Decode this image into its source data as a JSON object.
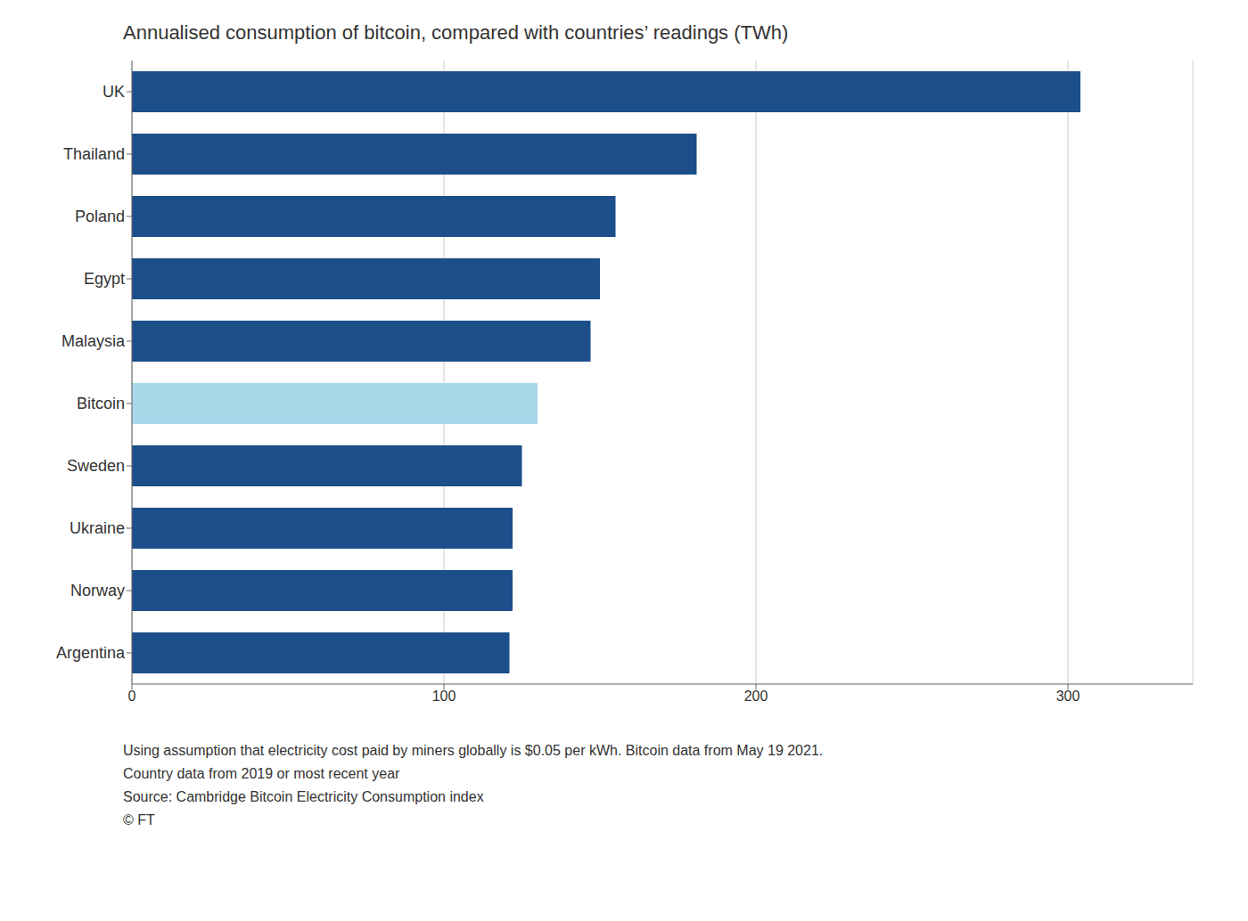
{
  "chart_data": {
    "type": "bar",
    "orientation": "horizontal",
    "title": "Annualised consumption of bitcoin, compared with countries’ readings (TWh)",
    "categories": [
      "UK",
      "Thailand",
      "Poland",
      "Egypt",
      "Malaysia",
      "Bitcoin",
      "Sweden",
      "Ukraine",
      "Norway",
      "Argentina"
    ],
    "values": [
      304,
      181,
      155,
      150,
      147,
      130,
      125,
      122,
      122,
      121
    ],
    "colors": [
      "#1c4f8a",
      "#1c4f8a",
      "#1c4f8a",
      "#1c4f8a",
      "#1c4f8a",
      "#a8d8ea",
      "#1c4f8a",
      "#1c4f8a",
      "#1c4f8a",
      "#1c4f8a"
    ],
    "xlim": [
      0,
      340
    ],
    "xticks": [
      0,
      100,
      200,
      300
    ],
    "grid": true,
    "annotations": [
      "Using assumption that electricity cost paid by miners globally is $0.05 per kWh. Bitcoin data from May 19 2021.",
      "Country data from 2019 or most recent year",
      "Source: Cambridge Bitcoin Electricity Consumption index",
      "© FT"
    ]
  }
}
